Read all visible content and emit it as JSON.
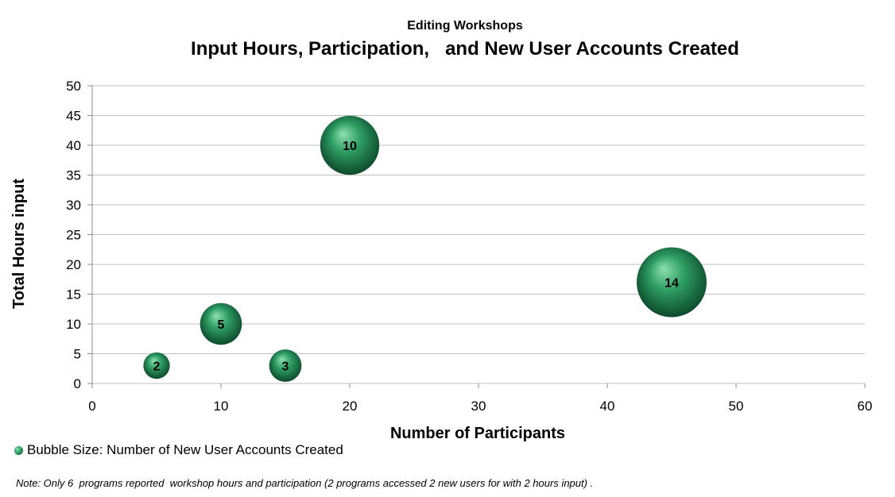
{
  "chart_data": {
    "type": "bubble",
    "subtitle": "Editing Workshops",
    "title": "Input Hours, Participation,   and New User Accounts Created",
    "xlabel": "Number of Participants",
    "ylabel": "Total Hours input",
    "xlim": [
      0,
      60
    ],
    "ylim": [
      0,
      50
    ],
    "x_ticks": [
      0,
      10,
      20,
      30,
      40,
      50,
      60
    ],
    "y_ticks": [
      0,
      5,
      10,
      15,
      20,
      25,
      30,
      35,
      40,
      45,
      50
    ],
    "grid": "horizontal",
    "series": [
      {
        "name": "Bubble Size: Number of New User Accounts Created",
        "points": [
          {
            "x": 5,
            "y": 3,
            "size": 2
          },
          {
            "x": 10,
            "y": 10,
            "size": 5
          },
          {
            "x": 15,
            "y": 3,
            "size": 3
          },
          {
            "x": 20,
            "y": 40,
            "size": 10
          },
          {
            "x": 45,
            "y": 17,
            "size": 14
          }
        ]
      }
    ],
    "legend_position": "bottom-left",
    "colors": {
      "bubble_light": "#8fe0b0",
      "bubble_mid": "#2e9e64",
      "bubble_dark": "#0d4a2c",
      "grid": "#bfbfbf"
    }
  },
  "legend_label": "Bubble Size: Number of New User Accounts Created",
  "note": "Note: Only 6  programs reported  workshop hours and participation (2 programs accessed 2 new users for with 2 hours input) ."
}
